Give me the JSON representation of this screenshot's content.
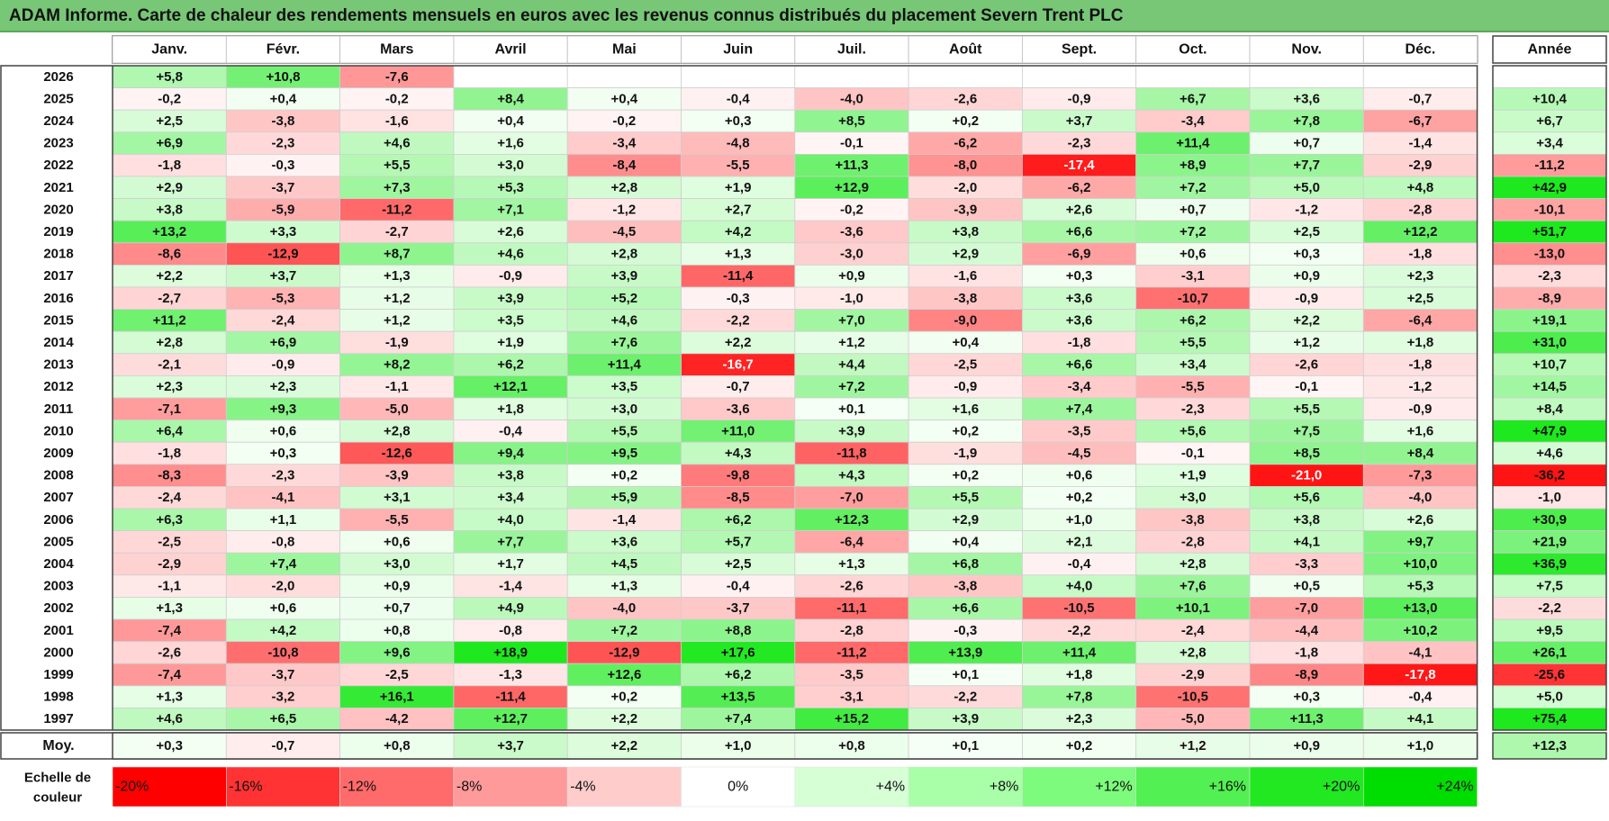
{
  "title": "ADAM Informe. Carte de chaleur des rendements mensuels en euros avec les revenus connus distribués du placement Severn Trent PLC",
  "chart_data": {
    "type": "heatmap",
    "months": [
      "Janv.",
      "Févr.",
      "Mars",
      "Avril",
      "Mai",
      "Juin",
      "Juil.",
      "Août",
      "Sept.",
      "Oct.",
      "Nov.",
      "Déc."
    ],
    "year_header": "Année",
    "rows": [
      {
        "year": "2026",
        "values": [
          "+5,8",
          "+10,8",
          "-7,6",
          "",
          "",
          "",
          "",
          "",
          "",
          "",
          "",
          ""
        ],
        "annual": ""
      },
      {
        "year": "2025",
        "values": [
          "-0,2",
          "+0,4",
          "-0,2",
          "+8,4",
          "+0,4",
          "-0,4",
          "-4,0",
          "-2,6",
          "-0,9",
          "+6,7",
          "+3,6",
          "-0,7"
        ],
        "annual": "+10,4"
      },
      {
        "year": "2024",
        "values": [
          "+2,5",
          "-3,8",
          "-1,6",
          "+0,4",
          "-0,2",
          "+0,3",
          "+8,5",
          "+0,2",
          "+3,7",
          "-3,4",
          "+7,8",
          "-6,7"
        ],
        "annual": "+6,7"
      },
      {
        "year": "2023",
        "values": [
          "+6,9",
          "-2,3",
          "+4,6",
          "+1,6",
          "-3,4",
          "-4,8",
          "-0,1",
          "-6,2",
          "-2,3",
          "+11,4",
          "+0,7",
          "-1,4"
        ],
        "annual": "+3,4"
      },
      {
        "year": "2022",
        "values": [
          "-1,8",
          "-0,3",
          "+5,5",
          "+3,0",
          "-8,4",
          "-5,5",
          "+11,3",
          "-8,0",
          "-17,4",
          "+8,9",
          "+7,7",
          "-2,9"
        ],
        "annual": "-11,2"
      },
      {
        "year": "2021",
        "values": [
          "+2,9",
          "-3,7",
          "+7,3",
          "+5,3",
          "+2,8",
          "+1,9",
          "+12,9",
          "-2,0",
          "-6,2",
          "+7,2",
          "+5,0",
          "+4,8"
        ],
        "annual": "+42,9"
      },
      {
        "year": "2020",
        "values": [
          "+3,8",
          "-5,9",
          "-11,2",
          "+7,1",
          "-1,2",
          "+2,7",
          "-0,2",
          "-3,9",
          "+2,6",
          "+0,7",
          "-1,2",
          "-2,8"
        ],
        "annual": "-10,1"
      },
      {
        "year": "2019",
        "values": [
          "+13,2",
          "+3,3",
          "-2,7",
          "+2,6",
          "-4,5",
          "+4,2",
          "-3,6",
          "+3,8",
          "+6,6",
          "+7,2",
          "+2,5",
          "+12,2"
        ],
        "annual": "+51,7"
      },
      {
        "year": "2018",
        "values": [
          "-8,6",
          "-12,9",
          "+8,7",
          "+4,6",
          "+2,8",
          "+1,3",
          "-3,0",
          "+2,9",
          "-6,9",
          "+0,6",
          "+0,3",
          "-1,8"
        ],
        "annual": "-13,0"
      },
      {
        "year": "2017",
        "values": [
          "+2,2",
          "+3,7",
          "+1,3",
          "-0,9",
          "+3,9",
          "-11,4",
          "+0,9",
          "-1,6",
          "+0,3",
          "-3,1",
          "+0,9",
          "+2,3"
        ],
        "annual": "-2,3"
      },
      {
        "year": "2016",
        "values": [
          "-2,7",
          "-5,3",
          "+1,2",
          "+3,9",
          "+5,2",
          "-0,3",
          "-1,0",
          "-3,8",
          "+3,6",
          "-10,7",
          "-0,9",
          "+2,5"
        ],
        "annual": "-8,9"
      },
      {
        "year": "2015",
        "values": [
          "+11,2",
          "-2,4",
          "+1,2",
          "+3,5",
          "+4,6",
          "-2,2",
          "+7,0",
          "-9,0",
          "+3,6",
          "+6,2",
          "+2,2",
          "-6,4"
        ],
        "annual": "+19,1"
      },
      {
        "year": "2014",
        "values": [
          "+2,8",
          "+6,9",
          "-1,9",
          "+1,9",
          "+7,6",
          "+2,2",
          "+1,2",
          "+0,4",
          "-1,8",
          "+5,5",
          "+1,2",
          "+1,8"
        ],
        "annual": "+31,0"
      },
      {
        "year": "2013",
        "values": [
          "-2,1",
          "-0,9",
          "+8,2",
          "+6,2",
          "+11,4",
          "-16,7",
          "+4,4",
          "-2,5",
          "+6,6",
          "+3,4",
          "-2,6",
          "-1,8"
        ],
        "annual": "+10,7"
      },
      {
        "year": "2012",
        "values": [
          "+2,3",
          "+2,3",
          "-1,1",
          "+12,1",
          "+3,5",
          "-0,7",
          "+7,2",
          "-0,9",
          "-3,4",
          "-5,5",
          "-0,1",
          "-1,2"
        ],
        "annual": "+14,5"
      },
      {
        "year": "2011",
        "values": [
          "-7,1",
          "+9,3",
          "-5,0",
          "+1,8",
          "+3,0",
          "-3,6",
          "+0,1",
          "+1,6",
          "+7,4",
          "-2,3",
          "+5,5",
          "-0,9"
        ],
        "annual": "+8,4"
      },
      {
        "year": "2010",
        "values": [
          "+6,4",
          "+0,6",
          "+2,8",
          "-0,4",
          "+5,5",
          "+11,0",
          "+3,9",
          "+0,2",
          "-3,5",
          "+5,6",
          "+7,5",
          "+1,6"
        ],
        "annual": "+47,9"
      },
      {
        "year": "2009",
        "values": [
          "-1,8",
          "+0,3",
          "-12,6",
          "+9,4",
          "+9,5",
          "+4,3",
          "-11,8",
          "-1,9",
          "-4,5",
          "-0,1",
          "+8,5",
          "+8,4"
        ],
        "annual": "+4,6"
      },
      {
        "year": "2008",
        "values": [
          "-8,3",
          "-2,3",
          "-3,9",
          "+3,8",
          "+0,2",
          "-9,8",
          "+4,3",
          "+0,2",
          "+0,6",
          "+1,9",
          "-21,0",
          "-7,3"
        ],
        "annual": "-36,2"
      },
      {
        "year": "2007",
        "values": [
          "-2,4",
          "-4,1",
          "+3,1",
          "+3,4",
          "+5,9",
          "-8,5",
          "-7,0",
          "+5,5",
          "+0,2",
          "+3,0",
          "+5,6",
          "-4,0"
        ],
        "annual": "-1,0"
      },
      {
        "year": "2006",
        "values": [
          "+6,3",
          "+1,1",
          "-5,5",
          "+4,0",
          "-1,4",
          "+6,2",
          "+12,3",
          "+2,9",
          "+1,0",
          "-3,8",
          "+3,8",
          "+2,6"
        ],
        "annual": "+30,9"
      },
      {
        "year": "2005",
        "values": [
          "-2,5",
          "-0,8",
          "+0,6",
          "+7,7",
          "+3,6",
          "+5,7",
          "-6,4",
          "+0,4",
          "+2,1",
          "-2,8",
          "+4,1",
          "+9,7"
        ],
        "annual": "+21,9"
      },
      {
        "year": "2004",
        "values": [
          "-2,9",
          "+7,4",
          "+3,0",
          "+1,7",
          "+4,5",
          "+2,5",
          "+1,3",
          "+6,8",
          "-0,4",
          "+2,8",
          "-3,3",
          "+10,0"
        ],
        "annual": "+36,9"
      },
      {
        "year": "2003",
        "values": [
          "-1,1",
          "-2,0",
          "+0,9",
          "-1,4",
          "+1,3",
          "-0,4",
          "-2,6",
          "-3,8",
          "+4,0",
          "+7,6",
          "+0,5",
          "+5,3"
        ],
        "annual": "+7,5"
      },
      {
        "year": "2002",
        "values": [
          "+1,3",
          "+0,6",
          "+0,7",
          "+4,9",
          "-4,0",
          "-3,7",
          "-11,1",
          "+6,6",
          "-10,5",
          "+10,1",
          "-7,0",
          "+13,0"
        ],
        "annual": "-2,2"
      },
      {
        "year": "2001",
        "values": [
          "-7,4",
          "+4,2",
          "+0,8",
          "-0,8",
          "+7,2",
          "+8,8",
          "-2,8",
          "-0,3",
          "-2,2",
          "-2,4",
          "-4,4",
          "+10,2"
        ],
        "annual": "+9,5"
      },
      {
        "year": "2000",
        "values": [
          "-2,6",
          "-10,8",
          "+9,6",
          "+18,9",
          "-12,9",
          "+17,6",
          "-11,2",
          "+13,9",
          "+11,4",
          "+2,8",
          "-1,8",
          "-4,1"
        ],
        "annual": "+26,1"
      },
      {
        "year": "1999",
        "values": [
          "-7,4",
          "-3,7",
          "-2,5",
          "-1,3",
          "+12,6",
          "+6,2",
          "-3,5",
          "+0,1",
          "+1,8",
          "-2,9",
          "-8,9",
          "-17,8"
        ],
        "annual": "-25,6"
      },
      {
        "year": "1998",
        "values": [
          "+1,3",
          "-3,2",
          "+16,1",
          "-11,4",
          "+0,2",
          "+13,5",
          "-3,1",
          "-2,2",
          "+7,8",
          "-10,5",
          "+0,3",
          "-0,4"
        ],
        "annual": "+5,0"
      },
      {
        "year": "1997",
        "values": [
          "+4,6",
          "+6,5",
          "-4,2",
          "+12,7",
          "+2,2",
          "+7,4",
          "+15,2",
          "+3,9",
          "+2,3",
          "-5,0",
          "+11,3",
          "+4,1"
        ],
        "annual": "+75,4"
      }
    ],
    "average": {
      "label": "Moy.",
      "values": [
        "+0,3",
        "-0,7",
        "+0,8",
        "+3,7",
        "+2,2",
        "+1,0",
        "+0,8",
        "+0,1",
        "+0,2",
        "+1,2",
        "+0,9",
        "+1,0"
      ],
      "annual": "+12,3"
    },
    "scale": {
      "label_line1": "Echelle de",
      "label_line2": "couleur",
      "stops": [
        {
          "label": "-20%",
          "color": "#ff0000"
        },
        {
          "label": "-16%",
          "color": "#ff3333"
        },
        {
          "label": "-12%",
          "color": "#ff6a6a"
        },
        {
          "label": "-8%",
          "color": "#ff9a9a"
        },
        {
          "label": "-4%",
          "color": "#ffcccc"
        },
        {
          "label": "0%",
          "color": "#ffffff"
        },
        {
          "label": "+4%",
          "color": "#d6ffd6"
        },
        {
          "label": "+8%",
          "color": "#a8ffa8"
        },
        {
          "label": "+12%",
          "color": "#7cfb7c"
        },
        {
          "label": "+16%",
          "color": "#52f052"
        },
        {
          "label": "+20%",
          "color": "#22e822"
        },
        {
          "label": "+24%",
          "color": "#00dd00"
        }
      ]
    }
  }
}
